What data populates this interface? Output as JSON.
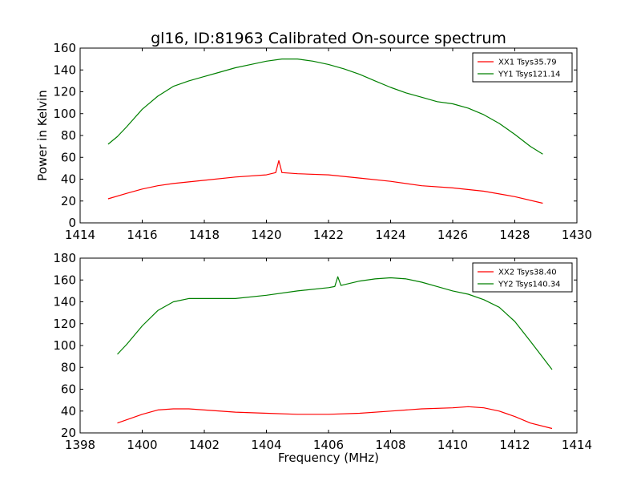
{
  "figure": {
    "title": "gl16, ID:81963 Calibrated On-source spectrum"
  },
  "colors": {
    "xx": "#ff0000",
    "yy": "#008000",
    "axes": "#000000",
    "background": "#ffffff"
  },
  "chart_data": [
    {
      "type": "line",
      "title": "gl16, ID:81963 Calibrated On-source spectrum",
      "xlabel": "",
      "ylabel": "Power in Kelvin",
      "xlim": [
        1414,
        1430
      ],
      "ylim": [
        0,
        160
      ],
      "xticks": [
        1414,
        1416,
        1418,
        1420,
        1422,
        1424,
        1426,
        1428,
        1430
      ],
      "yticks": [
        0,
        20,
        40,
        60,
        80,
        100,
        120,
        140,
        160
      ],
      "grid": false,
      "legend_position": "top-right",
      "series": [
        {
          "name": "XX1 Tsys35.79",
          "color": "#ff0000",
          "x": [
            1414.9,
            1415.5,
            1416.0,
            1416.5,
            1417.0,
            1418.0,
            1419.0,
            1420.0,
            1420.3,
            1420.4,
            1420.5,
            1421.0,
            1422.0,
            1423.0,
            1424.0,
            1425.0,
            1426.0,
            1427.0,
            1428.0,
            1428.9
          ],
          "y": [
            22,
            27,
            31,
            34,
            36,
            39,
            42,
            44,
            46,
            57,
            46,
            45,
            44,
            41,
            38,
            34,
            32,
            29,
            24,
            18
          ]
        },
        {
          "name": "YY1 Tsys121.14",
          "color": "#008000",
          "x": [
            1414.9,
            1415.2,
            1415.5,
            1416.0,
            1416.5,
            1417.0,
            1417.5,
            1418.0,
            1418.5,
            1419.0,
            1419.5,
            1420.0,
            1420.5,
            1421.0,
            1421.5,
            1422.0,
            1422.5,
            1423.0,
            1423.5,
            1424.0,
            1424.5,
            1425.0,
            1425.5,
            1426.0,
            1426.5,
            1427.0,
            1427.5,
            1428.0,
            1428.5,
            1428.9
          ],
          "y": [
            72,
            79,
            88,
            104,
            116,
            125,
            130,
            134,
            138,
            142,
            145,
            148,
            150,
            150,
            148,
            145,
            141,
            136,
            130,
            124,
            119,
            115,
            111,
            109,
            105,
            99,
            91,
            81,
            70,
            63
          ]
        }
      ]
    },
    {
      "type": "line",
      "title": "",
      "xlabel": "Frequency (MHz)",
      "ylabel": "",
      "xlim": [
        1398,
        1414
      ],
      "ylim": [
        20,
        180
      ],
      "xticks": [
        1398,
        1400,
        1402,
        1404,
        1406,
        1408,
        1410,
        1412,
        1414
      ],
      "yticks": [
        20,
        40,
        60,
        80,
        100,
        120,
        140,
        160,
        180
      ],
      "grid": false,
      "legend_position": "top-right",
      "series": [
        {
          "name": "XX2 Tsys38.40",
          "color": "#ff0000",
          "x": [
            1399.2,
            1400.0,
            1400.5,
            1401.0,
            1401.5,
            1402.0,
            1403.0,
            1404.0,
            1405.0,
            1406.0,
            1407.0,
            1408.0,
            1409.0,
            1410.0,
            1410.5,
            1411.0,
            1411.5,
            1412.0,
            1412.5,
            1413.2
          ],
          "y": [
            29,
            37,
            41,
            42,
            42,
            41,
            39,
            38,
            37,
            37,
            38,
            40,
            42,
            43,
            44,
            43,
            40,
            35,
            29,
            24
          ]
        },
        {
          "name": "YY2 Tsys140.34",
          "color": "#008000",
          "x": [
            1399.2,
            1399.5,
            1400.0,
            1400.5,
            1401.0,
            1401.5,
            1402.0,
            1403.0,
            1404.0,
            1405.0,
            1406.0,
            1406.2,
            1406.3,
            1406.4,
            1407.0,
            1407.5,
            1408.0,
            1408.5,
            1409.0,
            1409.5,
            1410.0,
            1410.5,
            1411.0,
            1411.5,
            1412.0,
            1412.5,
            1413.2
          ],
          "y": [
            92,
            101,
            118,
            132,
            140,
            143,
            143,
            143,
            146,
            150,
            153,
            154,
            163,
            155,
            159,
            161,
            162,
            161,
            158,
            154,
            150,
            147,
            142,
            135,
            122,
            104,
            78
          ]
        }
      ]
    }
  ]
}
